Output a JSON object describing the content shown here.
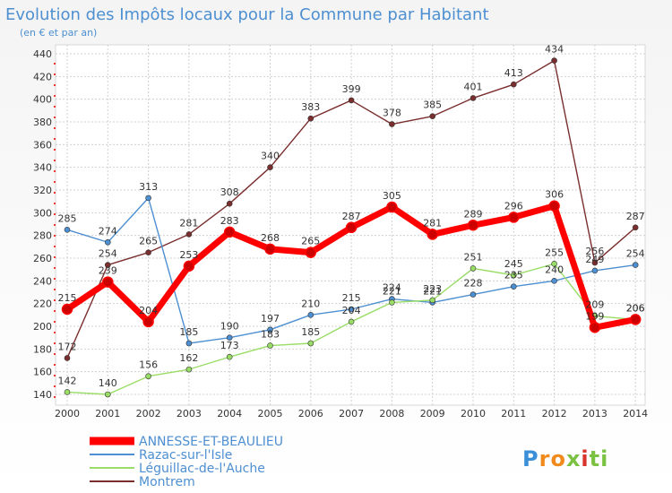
{
  "chart_data": {
    "type": "line",
    "title": "Evolution des Impôts locaux pour la Commune par Habitant",
    "subtitle": "(en € et par an)",
    "x": [
      "2000",
      "2001",
      "2002",
      "2003",
      "2004",
      "2005",
      "2006",
      "2007",
      "2008",
      "2009",
      "2010",
      "2011",
      "2012",
      "2013",
      "2014"
    ],
    "ylim": [
      140,
      440
    ],
    "yticks": [
      140,
      160,
      180,
      200,
      220,
      240,
      260,
      280,
      300,
      320,
      340,
      360,
      380,
      400,
      420,
      440
    ],
    "grid": true,
    "legend_position": "bottom-left",
    "series": [
      {
        "name": "ANNESSE-ET-BEAULIEU",
        "color": "#ff0000",
        "values": [
          215,
          239,
          204,
          253,
          283,
          268,
          265,
          287,
          305,
          281,
          289,
          296,
          306,
          199,
          206
        ]
      },
      {
        "name": "Razac-sur-l'Isle",
        "color": "#4d8fd1",
        "values": [
          285,
          274,
          313,
          185,
          190,
          197,
          210,
          215,
          224,
          221,
          228,
          235,
          240,
          249,
          254
        ]
      },
      {
        "name": "Léguillac-de-l'Auche",
        "color": "#99dd66",
        "values": [
          142,
          140,
          156,
          162,
          173,
          183,
          185,
          204,
          221,
          223,
          251,
          245,
          255,
          209,
          206
        ]
      },
      {
        "name": "Montrem",
        "color": "#7a2e2e",
        "values": [
          172,
          254,
          265,
          281,
          308,
          340,
          383,
          399,
          378,
          385,
          401,
          413,
          434,
          256,
          287
        ]
      }
    ]
  },
  "branding": {
    "logo_text": "Proxiti"
  }
}
